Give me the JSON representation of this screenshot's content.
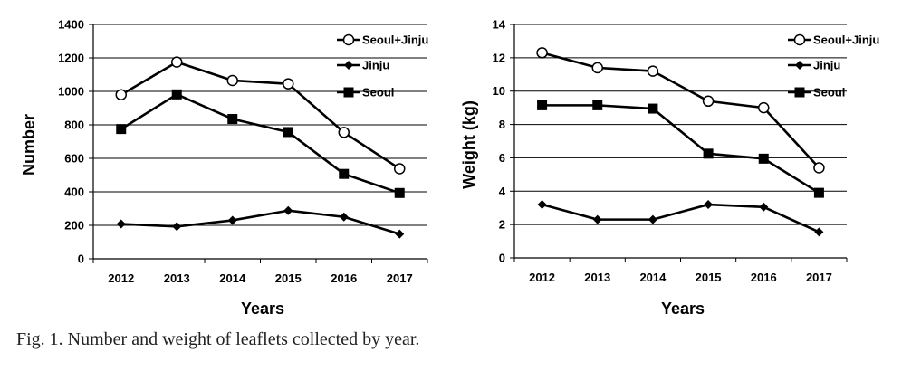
{
  "caption": "Fig. 1. Number and weight of leaflets collected by year.",
  "colors": {
    "line": "#000000",
    "grid": "#000000",
    "marker_fill_open": "#ffffff"
  },
  "chart_data": [
    {
      "type": "line",
      "title": "",
      "xlabel": "Years",
      "ylabel": "Number",
      "categories": [
        "2012",
        "2013",
        "2014",
        "2015",
        "2016",
        "2017"
      ],
      "ylim": [
        0,
        1400
      ],
      "yticks": [
        0,
        200,
        400,
        600,
        800,
        1000,
        1200,
        1400
      ],
      "grid": true,
      "legend_position": "top-right",
      "series": [
        {
          "name": "Seoul+Jinju",
          "marker": "circle-open",
          "values": [
            980,
            1175,
            1065,
            1045,
            755,
            538
          ]
        },
        {
          "name": "Jinju",
          "marker": "diamond-filled",
          "values": [
            208,
            193,
            230,
            288,
            250,
            148
          ]
        },
        {
          "name": "Seoul",
          "marker": "square-filled",
          "values": [
            775,
            982,
            835,
            757,
            507,
            393
          ]
        }
      ]
    },
    {
      "type": "line",
      "title": "",
      "xlabel": "Years",
      "ylabel": "Weight (kg)",
      "categories": [
        "2012",
        "2013",
        "2014",
        "2015",
        "2016",
        "2017"
      ],
      "ylim": [
        0,
        14
      ],
      "yticks": [
        0,
        2,
        4,
        6,
        8,
        10,
        12,
        14
      ],
      "grid": true,
      "legend_position": "top-right",
      "series": [
        {
          "name": "Seoul+Jinju",
          "marker": "circle-open",
          "values": [
            12.3,
            11.4,
            11.2,
            9.4,
            9.0,
            5.4
          ]
        },
        {
          "name": "Jinju",
          "marker": "diamond-filled",
          "values": [
            3.2,
            2.3,
            2.3,
            3.2,
            3.05,
            1.55
          ]
        },
        {
          "name": "Seoul",
          "marker": "square-filled",
          "values": [
            9.15,
            9.15,
            8.95,
            6.25,
            5.95,
            3.9
          ]
        }
      ]
    }
  ]
}
